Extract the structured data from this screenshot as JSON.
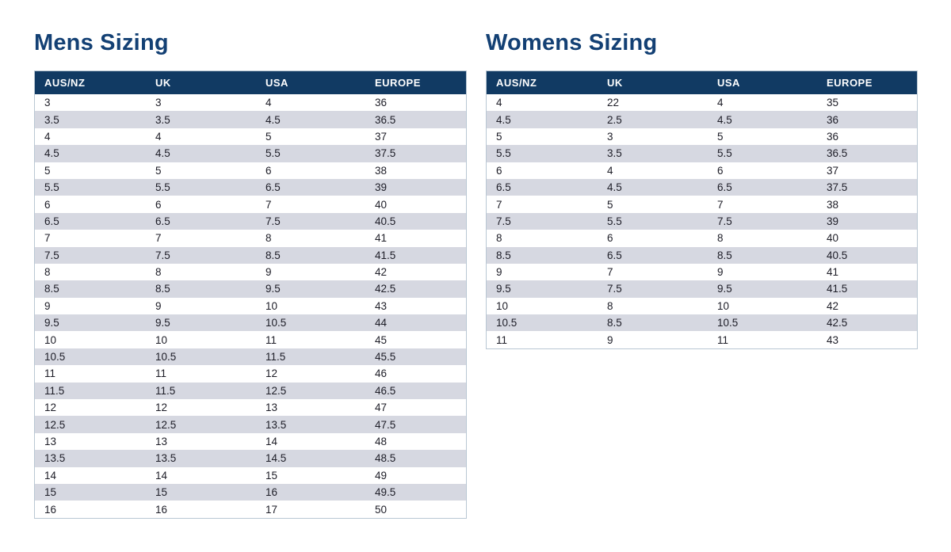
{
  "colors": {
    "header_bg": "#113a63",
    "header_text": "#ffffff",
    "title": "#134074",
    "stripe": "#d6d8e1",
    "border": "#b9c7d3",
    "cell_text": "#1d1d27",
    "page_bg": "#ffffff"
  },
  "tables": [
    {
      "id": "mens",
      "title": "Mens Sizing",
      "headers": [
        "AUS/NZ",
        "UK",
        "USA",
        "EUROPE"
      ],
      "rows": [
        [
          "3",
          "3",
          "4",
          "36"
        ],
        [
          "3.5",
          "3.5",
          "4.5",
          "36.5"
        ],
        [
          "4",
          "4",
          "5",
          "37"
        ],
        [
          "4.5",
          "4.5",
          "5.5",
          "37.5"
        ],
        [
          "5",
          "5",
          "6",
          "38"
        ],
        [
          "5.5",
          "5.5",
          "6.5",
          "39"
        ],
        [
          "6",
          "6",
          "7",
          "40"
        ],
        [
          "6.5",
          "6.5",
          "7.5",
          "40.5"
        ],
        [
          "7",
          "7",
          "8",
          "41"
        ],
        [
          "7.5",
          "7.5",
          "8.5",
          "41.5"
        ],
        [
          "8",
          "8",
          "9",
          "42"
        ],
        [
          "8.5",
          "8.5",
          "9.5",
          "42.5"
        ],
        [
          "9",
          "9",
          "10",
          "43"
        ],
        [
          "9.5",
          "9.5",
          "10.5",
          "44"
        ],
        [
          "10",
          "10",
          "11",
          "45"
        ],
        [
          "10.5",
          "10.5",
          "11.5",
          "45.5"
        ],
        [
          "11",
          "11",
          "12",
          "46"
        ],
        [
          "11.5",
          "11.5",
          "12.5",
          "46.5"
        ],
        [
          "12",
          "12",
          "13",
          "47"
        ],
        [
          "12.5",
          "12.5",
          "13.5",
          "47.5"
        ],
        [
          "13",
          "13",
          "14",
          "48"
        ],
        [
          "13.5",
          "13.5",
          "14.5",
          "48.5"
        ],
        [
          "14",
          "14",
          "15",
          "49"
        ],
        [
          "15",
          "15",
          "16",
          "49.5"
        ],
        [
          "16",
          "16",
          "17",
          "50"
        ]
      ]
    },
    {
      "id": "womens",
      "title": "Womens Sizing",
      "headers": [
        "AUS/NZ",
        "UK",
        "USA",
        "EUROPE"
      ],
      "rows": [
        [
          "4",
          "22",
          "4",
          "35"
        ],
        [
          "4.5",
          "2.5",
          "4.5",
          "36"
        ],
        [
          "5",
          "3",
          "5",
          "36"
        ],
        [
          "5.5",
          "3.5",
          "5.5",
          "36.5"
        ],
        [
          "6",
          "4",
          "6",
          "37"
        ],
        [
          "6.5",
          "4.5",
          "6.5",
          "37.5"
        ],
        [
          "7",
          "5",
          "7",
          "38"
        ],
        [
          "7.5",
          "5.5",
          "7.5",
          "39"
        ],
        [
          "8",
          "6",
          "8",
          "40"
        ],
        [
          "8.5",
          "6.5",
          "8.5",
          "40.5"
        ],
        [
          "9",
          "7",
          "9",
          "41"
        ],
        [
          "9.5",
          "7.5",
          "9.5",
          "41.5"
        ],
        [
          "10",
          "8",
          "10",
          "42"
        ],
        [
          "10.5",
          "8.5",
          "10.5",
          "42.5"
        ],
        [
          "11",
          "9",
          "11",
          "43"
        ]
      ]
    }
  ]
}
